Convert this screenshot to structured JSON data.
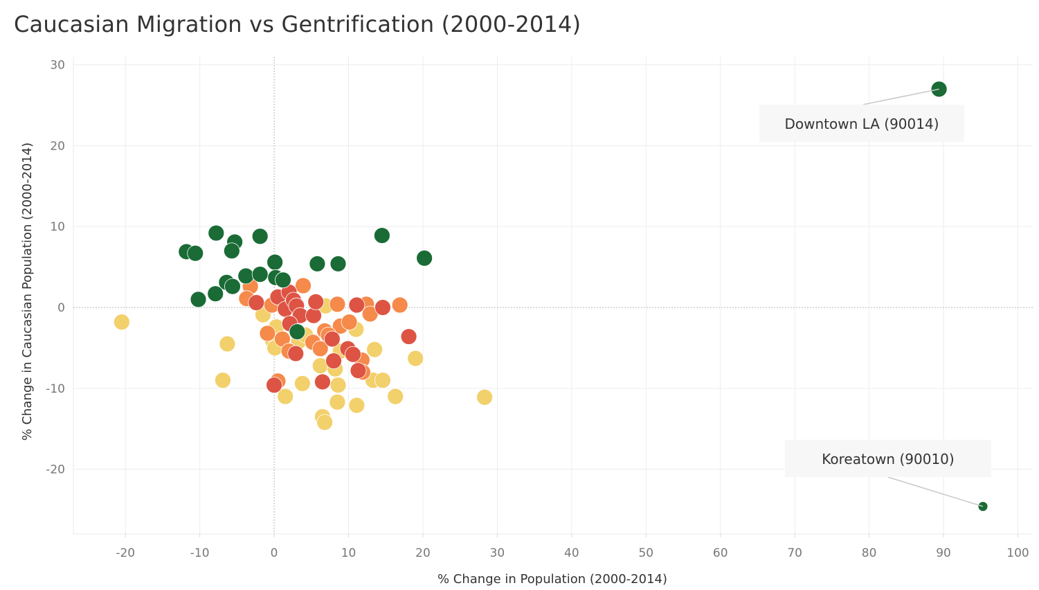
{
  "chart_data": {
    "type": "scatter",
    "title": "Caucasian Migration vs Gentrification (2000-2014)",
    "xlabel": "% Change in Population (2000-2014)",
    "ylabel": "% Change in Caucasian Population (2000-2014)",
    "xlim": [
      -27,
      102
    ],
    "ylim": [
      -28,
      31
    ],
    "x_ticks": [
      "-20",
      "-10",
      "0",
      "10",
      "20",
      "30",
      "40",
      "50",
      "60",
      "70",
      "80",
      "90",
      "100"
    ],
    "y_ticks": [
      "30",
      "20",
      "10",
      "0",
      "-10",
      "-20"
    ],
    "grid": true,
    "colors": {
      "green": "#1a6b35",
      "red": "#dd5444",
      "orange": "#f58a4b",
      "yellow": "#f2d06b"
    },
    "points": [
      {
        "x": -11.8,
        "y": 6.9,
        "c": "green"
      },
      {
        "x": -10.6,
        "y": 6.7,
        "c": "green"
      },
      {
        "x": -7.8,
        "y": 9.2,
        "c": "green"
      },
      {
        "x": -5.3,
        "y": 8.1,
        "c": "green"
      },
      {
        "x": -5.7,
        "y": 7.0,
        "c": "green"
      },
      {
        "x": -1.9,
        "y": 8.8,
        "c": "green"
      },
      {
        "x": 14.5,
        "y": 8.9,
        "c": "green"
      },
      {
        "x": 20.2,
        "y": 6.1,
        "c": "green"
      },
      {
        "x": 0.1,
        "y": 5.6,
        "c": "green"
      },
      {
        "x": 5.8,
        "y": 5.4,
        "c": "green"
      },
      {
        "x": 8.6,
        "y": 5.4,
        "c": "green"
      },
      {
        "x": -3.8,
        "y": 3.9,
        "c": "green"
      },
      {
        "x": -1.9,
        "y": 4.1,
        "c": "green"
      },
      {
        "x": -6.4,
        "y": 3.1,
        "c": "green"
      },
      {
        "x": -5.6,
        "y": 2.6,
        "c": "green"
      },
      {
        "x": 0.2,
        "y": 3.7,
        "c": "green"
      },
      {
        "x": 1.2,
        "y": 3.4,
        "c": "green"
      },
      {
        "x": -7.9,
        "y": 1.7,
        "c": "green"
      },
      {
        "x": -10.2,
        "y": 1.0,
        "c": "green"
      },
      {
        "x": 3.1,
        "y": -3.0,
        "c": "green"
      },
      {
        "x": 89.4,
        "y": 27.0,
        "c": "green"
      },
      {
        "x": 95.3,
        "y": -24.6,
        "c": "green",
        "r": 7
      },
      {
        "x": -2.4,
        "y": 0.6,
        "c": "red"
      },
      {
        "x": 0.5,
        "y": 1.3,
        "c": "red"
      },
      {
        "x": 1.5,
        "y": -0.2,
        "c": "red"
      },
      {
        "x": 2.0,
        "y": 1.9,
        "c": "red"
      },
      {
        "x": 2.6,
        "y": 0.9,
        "c": "red"
      },
      {
        "x": 3.0,
        "y": 0.2,
        "c": "red"
      },
      {
        "x": 3.5,
        "y": -1.0,
        "c": "red"
      },
      {
        "x": 5.3,
        "y": -1.0,
        "c": "red"
      },
      {
        "x": 5.6,
        "y": 0.7,
        "c": "red"
      },
      {
        "x": 2.1,
        "y": -2.0,
        "c": "red"
      },
      {
        "x": 7.8,
        "y": -3.9,
        "c": "red"
      },
      {
        "x": 9.9,
        "y": -5.1,
        "c": "red"
      },
      {
        "x": 10.6,
        "y": -5.8,
        "c": "red"
      },
      {
        "x": 11.1,
        "y": 0.3,
        "c": "red"
      },
      {
        "x": 14.6,
        "y": 0.0,
        "c": "red"
      },
      {
        "x": 18.1,
        "y": -3.6,
        "c": "red"
      },
      {
        "x": 2.9,
        "y": -5.7,
        "c": "red"
      },
      {
        "x": 8.0,
        "y": -6.6,
        "c": "red"
      },
      {
        "x": 11.3,
        "y": -7.8,
        "c": "red"
      },
      {
        "x": 6.5,
        "y": -9.2,
        "c": "red"
      },
      {
        "x": 0.0,
        "y": -9.6,
        "c": "red"
      },
      {
        "x": -3.2,
        "y": 2.6,
        "c": "orange"
      },
      {
        "x": -3.7,
        "y": 1.1,
        "c": "orange"
      },
      {
        "x": -0.3,
        "y": 0.3,
        "c": "orange"
      },
      {
        "x": 3.9,
        "y": 2.7,
        "c": "orange"
      },
      {
        "x": 8.5,
        "y": 0.4,
        "c": "orange"
      },
      {
        "x": 12.4,
        "y": 0.4,
        "c": "orange"
      },
      {
        "x": 12.9,
        "y": -0.8,
        "c": "orange"
      },
      {
        "x": 16.9,
        "y": 0.3,
        "c": "orange"
      },
      {
        "x": -0.9,
        "y": -3.2,
        "c": "orange"
      },
      {
        "x": 1.1,
        "y": -3.9,
        "c": "orange"
      },
      {
        "x": 2.0,
        "y": -5.4,
        "c": "orange"
      },
      {
        "x": 5.2,
        "y": -4.3,
        "c": "orange"
      },
      {
        "x": 6.2,
        "y": -5.1,
        "c": "orange"
      },
      {
        "x": 6.8,
        "y": -2.9,
        "c": "orange"
      },
      {
        "x": 8.9,
        "y": -2.3,
        "c": "orange"
      },
      {
        "x": 10.1,
        "y": -1.8,
        "c": "orange"
      },
      {
        "x": 11.8,
        "y": -6.5,
        "c": "orange"
      },
      {
        "x": 11.9,
        "y": -8.0,
        "c": "orange"
      },
      {
        "x": 0.5,
        "y": -9.1,
        "c": "orange"
      },
      {
        "x": 7.3,
        "y": -3.4,
        "c": "orange"
      },
      {
        "x": -20.5,
        "y": -1.8,
        "c": "yellow"
      },
      {
        "x": -6.3,
        "y": -4.5,
        "c": "yellow"
      },
      {
        "x": -6.9,
        "y": -9.0,
        "c": "yellow"
      },
      {
        "x": -1.5,
        "y": -0.9,
        "c": "yellow"
      },
      {
        "x": 0.3,
        "y": -2.4,
        "c": "yellow"
      },
      {
        "x": -0.2,
        "y": -4.1,
        "c": "yellow"
      },
      {
        "x": 0.1,
        "y": -5.0,
        "c": "yellow"
      },
      {
        "x": 3.3,
        "y": -4.2,
        "c": "yellow"
      },
      {
        "x": 4.2,
        "y": -3.4,
        "c": "yellow"
      },
      {
        "x": 6.9,
        "y": 0.2,
        "c": "yellow"
      },
      {
        "x": 11.0,
        "y": -2.7,
        "c": "yellow"
      },
      {
        "x": 13.5,
        "y": -5.2,
        "c": "yellow"
      },
      {
        "x": 8.9,
        "y": -5.4,
        "c": "yellow"
      },
      {
        "x": 6.2,
        "y": -7.2,
        "c": "yellow"
      },
      {
        "x": 8.2,
        "y": -7.6,
        "c": "yellow"
      },
      {
        "x": 8.6,
        "y": -9.6,
        "c": "yellow"
      },
      {
        "x": 13.3,
        "y": -9.0,
        "c": "yellow"
      },
      {
        "x": 14.6,
        "y": -9.0,
        "c": "yellow"
      },
      {
        "x": 19.0,
        "y": -6.3,
        "c": "yellow"
      },
      {
        "x": 16.3,
        "y": -11.0,
        "c": "yellow"
      },
      {
        "x": 3.8,
        "y": -9.4,
        "c": "yellow"
      },
      {
        "x": 1.5,
        "y": -11.0,
        "c": "yellow"
      },
      {
        "x": 8.5,
        "y": -11.7,
        "c": "yellow"
      },
      {
        "x": 11.1,
        "y": -12.1,
        "c": "yellow"
      },
      {
        "x": 6.5,
        "y": -13.5,
        "c": "yellow"
      },
      {
        "x": 6.8,
        "y": -14.2,
        "c": "yellow"
      },
      {
        "x": 28.3,
        "y": -11.1,
        "c": "yellow"
      }
    ],
    "annotations": [
      {
        "label": "Downtown LA (90014)",
        "x": 89.4,
        "y": 27.0
      },
      {
        "label": "Koreatown (90010)",
        "x": 95.3,
        "y": -24.6
      }
    ]
  }
}
